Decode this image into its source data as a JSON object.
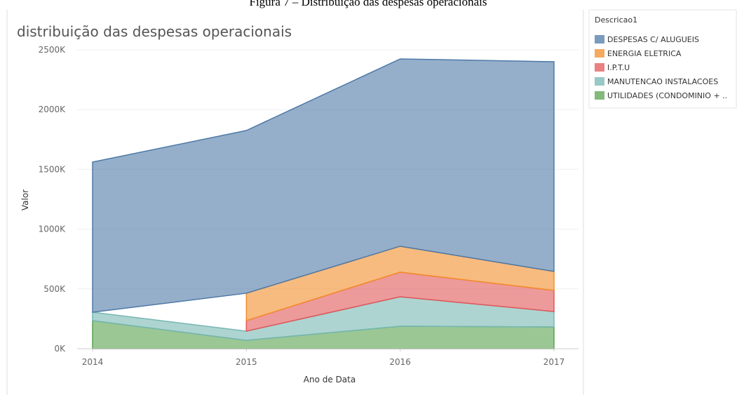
{
  "caption": "Figura 7 – Distribuição das despesas operacionais",
  "chart_data": {
    "type": "area",
    "stacked": true,
    "title": "distribuição das despesas operacionais",
    "x_label": "Ano de Data",
    "y_label": "Valor",
    "legend_title": "Descricao1",
    "legend": "right",
    "x": [
      2014,
      2015,
      2016,
      2017
    ],
    "xticks": [
      2014,
      2015,
      2016,
      2017
    ],
    "ylim": [
      0,
      2500000
    ],
    "yticks": [
      {
        "value": 0,
        "label": "0K"
      },
      {
        "value": 500000,
        "label": "500K"
      },
      {
        "value": 1000000,
        "label": "1000K"
      },
      {
        "value": 1500000,
        "label": "1500K"
      },
      {
        "value": 2000000,
        "label": "2000K"
      },
      {
        "value": 2500000,
        "label": "2500K"
      }
    ],
    "grid": true,
    "series": [
      {
        "name": "DESPESAS C/ ALUGUEIS",
        "color": "#4e79a7",
        "values": [
          1256000,
          1361000,
          1567000,
          1754000
        ]
      },
      {
        "name": "ENERGIA ELETRICA",
        "color": "#f28e2b",
        "values": [
          null,
          229000,
          217000,
          159000
        ]
      },
      {
        "name": "I.P.T.U",
        "color": "#e15759",
        "values": [
          null,
          88000,
          206000,
          176000
        ]
      },
      {
        "name": "MANUTENCAO INSTALACOES",
        "color": "#76b7b2",
        "values": [
          70000,
          77000,
          246000,
          129000
        ]
      },
      {
        "name": "UTILIDADES (CONDOMINIO + ..",
        "color": "#59a14f",
        "values": [
          235000,
          70000,
          188000,
          182000
        ]
      }
    ]
  }
}
